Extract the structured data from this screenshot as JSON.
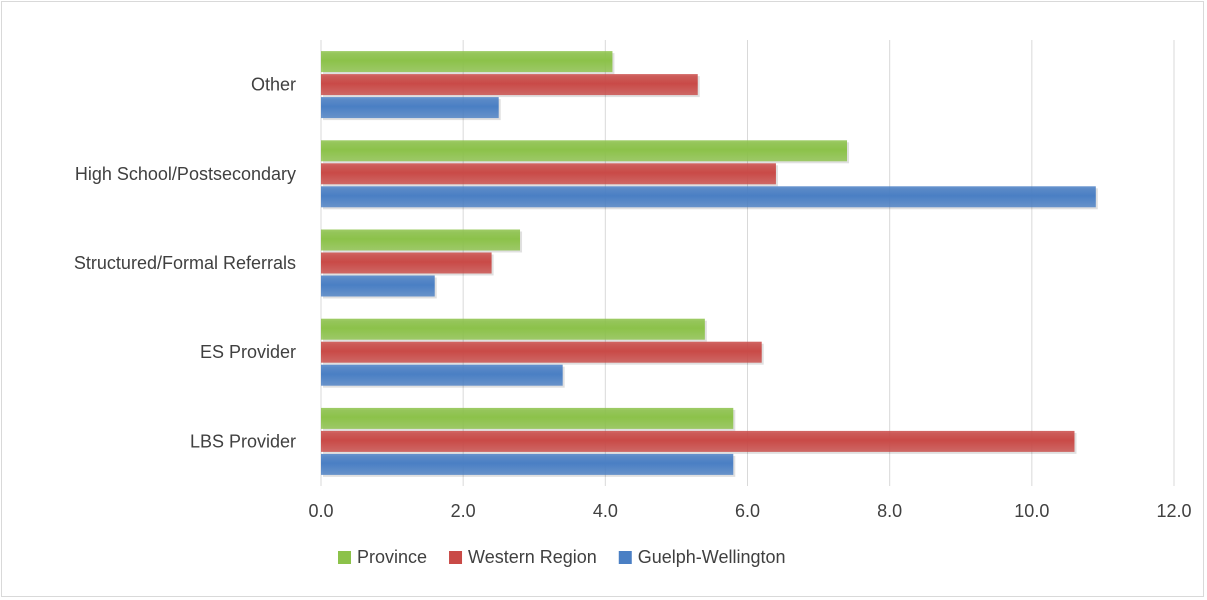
{
  "chart_data": {
    "type": "bar",
    "orientation": "horizontal",
    "categories": [
      "Other",
      "High School/Postsecondary",
      "Structured/Formal Referrals",
      "ES Provider",
      "LBS Provider"
    ],
    "series": [
      {
        "name": "Province",
        "color": "#8cc24a",
        "values": [
          4.1,
          7.4,
          2.8,
          5.4,
          5.8
        ]
      },
      {
        "name": "Western Region",
        "color": "#c94a47",
        "values": [
          5.3,
          6.4,
          2.4,
          6.2,
          10.6
        ]
      },
      {
        "name": "Guelph-Wellington",
        "color": "#4a7fc4",
        "values": [
          2.5,
          10.9,
          1.6,
          3.4,
          5.8
        ]
      }
    ],
    "xlim": [
      0,
      12
    ],
    "xticks": [
      "0.0",
      "2.0",
      "4.0",
      "6.0",
      "8.0",
      "10.0",
      "12.0"
    ],
    "xtick_values": [
      0,
      2,
      4,
      6,
      8,
      10,
      12
    ],
    "grid": true,
    "legend_position": "bottom"
  }
}
